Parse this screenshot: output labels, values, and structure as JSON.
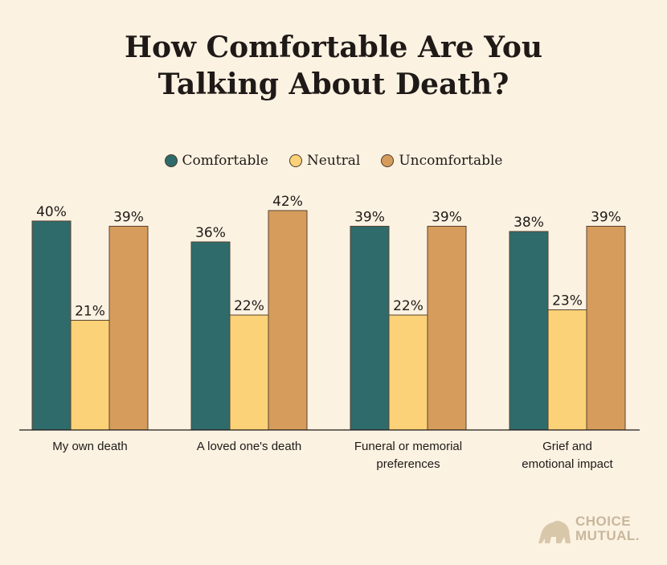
{
  "title_lines": [
    "How Comfortable Are You",
    "Talking About Death?"
  ],
  "legend": [
    {
      "label": "Comfortable",
      "color": "#2f6b6b"
    },
    {
      "label": "Neutral",
      "color": "#fbd277"
    },
    {
      "label": "Uncomfortable",
      "color": "#d69c5c"
    }
  ],
  "chart_data": {
    "type": "bar",
    "title": "How Comfortable Are You Talking About Death?",
    "categories": [
      [
        "My own death"
      ],
      [
        "A loved one's death"
      ],
      [
        "Funeral or memorial",
        "preferences"
      ],
      [
        "Grief and",
        "emotional impact"
      ]
    ],
    "series": [
      {
        "name": "Comfortable",
        "color": "#2f6b6b",
        "values": [
          40,
          36,
          39,
          38
        ]
      },
      {
        "name": "Neutral",
        "color": "#fbd277",
        "values": [
          21,
          22,
          22,
          23
        ]
      },
      {
        "name": "Uncomfortable",
        "color": "#d69c5c",
        "values": [
          39,
          42,
          39,
          39
        ]
      }
    ],
    "value_suffix": "%",
    "ylim": [
      0,
      42
    ],
    "xlabel": "",
    "ylabel": "",
    "grid": false,
    "legend": "top-center"
  },
  "logo": {
    "line1": "CHOICE",
    "line2": "MUTUAL."
  }
}
